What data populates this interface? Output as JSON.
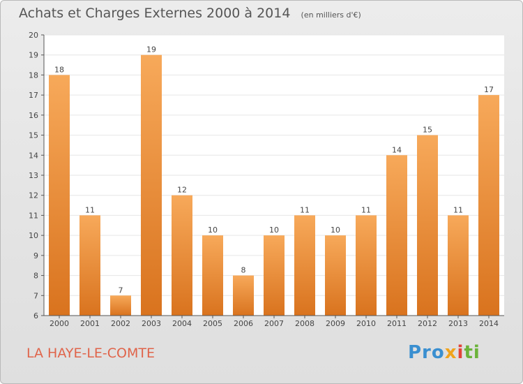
{
  "header": {
    "title": "Achats et Charges Externes 2000 à 2014",
    "subtitle": "(en milliers d'€)"
  },
  "footer": {
    "commune": "LA HAYE-LE-COMTE",
    "logo_text": "Proxiti",
    "logo_parts": [
      "Pro",
      "x",
      "i",
      "ti"
    ]
  },
  "colors": {
    "bar_light": "#f7a95a",
    "bar_dark": "#d9731e",
    "commune_text": "#e0644a",
    "plot_background": "#ffffff",
    "grid": "#e6e6e6"
  },
  "chart_data": {
    "type": "bar",
    "title": "Achats et Charges Externes 2000 à 2014",
    "subtitle": "(en milliers d'€)",
    "xlabel": "",
    "ylabel": "",
    "categories": [
      "2000",
      "2001",
      "2002",
      "2003",
      "2004",
      "2005",
      "2006",
      "2007",
      "2008",
      "2009",
      "2010",
      "2011",
      "2012",
      "2013",
      "2014"
    ],
    "values": [
      18,
      11,
      7,
      19,
      12,
      10,
      8,
      10,
      11,
      10,
      11,
      14,
      15,
      11,
      17
    ],
    "ylim": [
      6,
      20
    ],
    "yticks": [
      6,
      7,
      8,
      9,
      10,
      11,
      12,
      13,
      14,
      15,
      16,
      17,
      18,
      19,
      20
    ],
    "grid": true,
    "legend": "none"
  }
}
